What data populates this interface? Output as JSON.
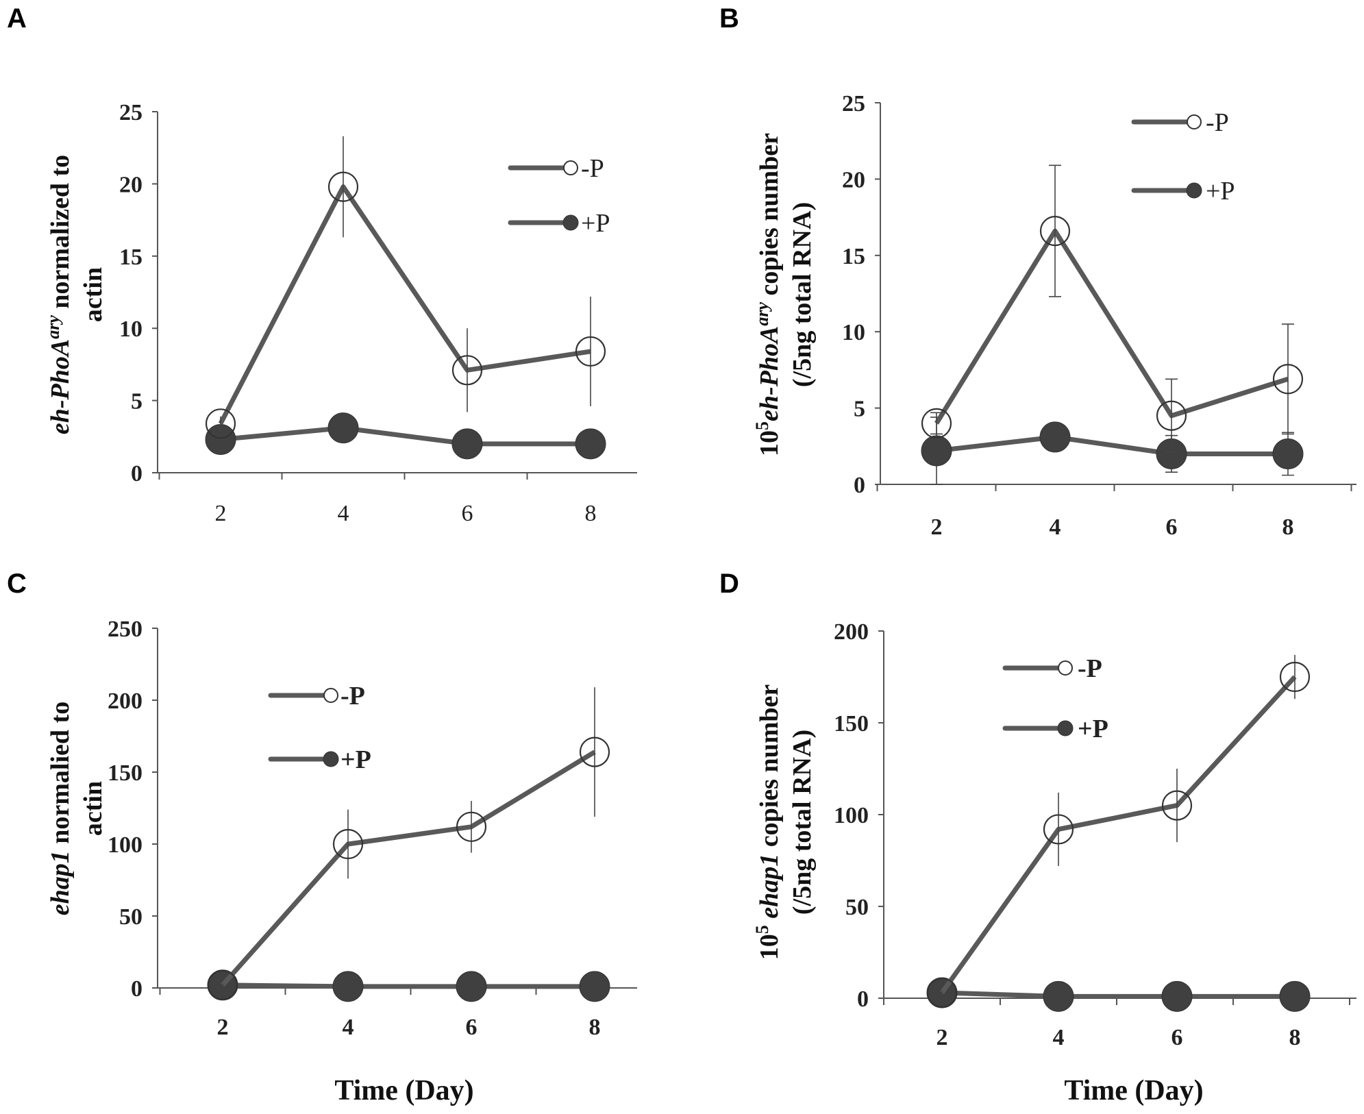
{
  "chart_data": [
    {
      "panel": "A",
      "type": "line",
      "ylabel_parts": [
        "eh-PhoA",
        "ary",
        " normalized to",
        "actin"
      ],
      "xlabel": "",
      "yticks": [
        "0",
        "5",
        "10",
        "15",
        "20",
        "25"
      ],
      "ylim": [
        0,
        25
      ],
      "x": [
        2,
        4,
        6,
        8
      ],
      "xticks": [
        "2",
        "4",
        "6",
        "8"
      ],
      "series": [
        {
          "name": "-P",
          "values": [
            3.4,
            19.8,
            7.1,
            8.4
          ],
          "errors": [
            0.5,
            3.5,
            2.9,
            3.8
          ],
          "marker": "open"
        },
        {
          "name": "+P",
          "values": [
            2.3,
            3.1,
            2.0,
            2.0
          ],
          "errors": [
            0.4,
            0.5,
            0.4,
            0.4
          ],
          "marker": "filled"
        }
      ],
      "legend": "top-right"
    },
    {
      "panel": "B",
      "type": "line",
      "ylabel_parts": [
        "10",
        "5",
        "eh-PhoA",
        "ary",
        " copies number",
        "(/5ng total RNA)"
      ],
      "xlabel": "",
      "yticks": [
        "0",
        "5",
        "10",
        "15",
        "20",
        "25"
      ],
      "ylim": [
        0,
        25
      ],
      "x": [
        2,
        4,
        6,
        8
      ],
      "xticks": [
        "2",
        "4",
        "6",
        "8"
      ],
      "series": [
        {
          "name": "-P",
          "values": [
            4.0,
            16.6,
            4.5,
            6.9
          ],
          "errors": [
            0.7,
            4.3,
            2.4,
            3.6
          ],
          "marker": "open"
        },
        {
          "name": "+P",
          "values": [
            2.2,
            3.1,
            2.0,
            2.0
          ],
          "errors": [
            2.2,
            0.5,
            1.2,
            1.4
          ],
          "marker": "filled"
        }
      ],
      "legend": "top-right"
    },
    {
      "panel": "C",
      "type": "line",
      "ylabel_parts": [
        "ehap1",
        " normalied to",
        "actin"
      ],
      "xlabel": "Time (Day)",
      "yticks": [
        "0",
        "50",
        "100",
        "150",
        "200",
        "250"
      ],
      "ylim": [
        0,
        250
      ],
      "x": [
        2,
        4,
        6,
        8
      ],
      "xticks": [
        "2",
        "4",
        "6",
        "8"
      ],
      "series": [
        {
          "name": "-P",
          "values": [
            2,
            100,
            112,
            164
          ],
          "errors": [
            1,
            24,
            18,
            45
          ],
          "marker": "open"
        },
        {
          "name": "+P",
          "values": [
            2,
            1,
            1,
            1
          ],
          "errors": [
            1,
            1,
            1,
            1
          ],
          "marker": "filled"
        }
      ],
      "legend": "middle"
    },
    {
      "panel": "D",
      "type": "line",
      "ylabel_parts": [
        "10",
        "5",
        " ",
        "ehap1",
        " copies number",
        "(/5ng total RNA)"
      ],
      "xlabel": "Time (Day)",
      "yticks": [
        "0",
        "50",
        "100",
        "150",
        "200"
      ],
      "ylim": [
        0,
        200
      ],
      "x": [
        2,
        4,
        6,
        8
      ],
      "xticks": [
        "2",
        "4",
        "6",
        "8"
      ],
      "series": [
        {
          "name": "-P",
          "values": [
            3,
            92,
            105,
            175
          ],
          "errors": [
            1,
            20,
            20,
            12
          ],
          "marker": "open"
        },
        {
          "name": "+P",
          "values": [
            3,
            1,
            1,
            1
          ],
          "errors": [
            1,
            1,
            1,
            1
          ],
          "marker": "filled"
        }
      ],
      "legend": "top-middle"
    }
  ],
  "colors": {
    "line": "#595959",
    "filled_marker": "#404040",
    "axis": "#555555",
    "error": "#444444"
  }
}
